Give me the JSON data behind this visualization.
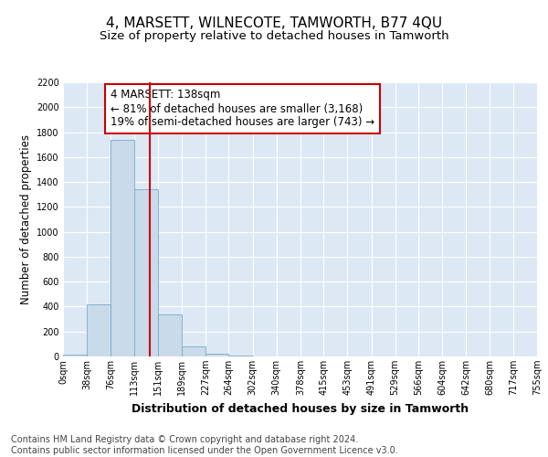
{
  "title": "4, MARSETT, WILNECOTE, TAMWORTH, B77 4QU",
  "subtitle": "Size of property relative to detached houses in Tamworth",
  "xlabel": "Distribution of detached houses by size in Tamworth",
  "ylabel": "Number of detached properties",
  "bar_color": "#c9daea",
  "bar_edge_color": "#7aaac8",
  "bg_color": "#dce9f5",
  "grid_color": "#ffffff",
  "annotation_box_color": "#cc0000",
  "vline_color": "#cc0000",
  "annotation_text": "4 MARSETT: 138sqm\n← 81% of detached houses are smaller (3,168)\n19% of semi-detached houses are larger (743) →",
  "property_size": 138,
  "bin_edges": [
    0,
    38,
    76,
    113,
    151,
    189,
    227,
    264,
    302,
    340,
    378,
    415,
    453,
    491,
    529,
    566,
    604,
    642,
    680,
    717,
    755
  ],
  "bar_heights": [
    15,
    415,
    1740,
    1345,
    340,
    78,
    25,
    10,
    3,
    1,
    0,
    0,
    0,
    0,
    0,
    0,
    0,
    0,
    0,
    0
  ],
  "ylim": [
    0,
    2200
  ],
  "yticks": [
    0,
    200,
    400,
    600,
    800,
    1000,
    1200,
    1400,
    1600,
    1800,
    2000,
    2200
  ],
  "footer_text": "Contains HM Land Registry data © Crown copyright and database right 2024.\nContains public sector information licensed under the Open Government Licence v3.0.",
  "title_fontsize": 11,
  "subtitle_fontsize": 9.5,
  "annotation_fontsize": 8.5,
  "tick_fontsize": 7,
  "ylabel_fontsize": 8.5,
  "xlabel_fontsize": 9,
  "footer_fontsize": 7
}
